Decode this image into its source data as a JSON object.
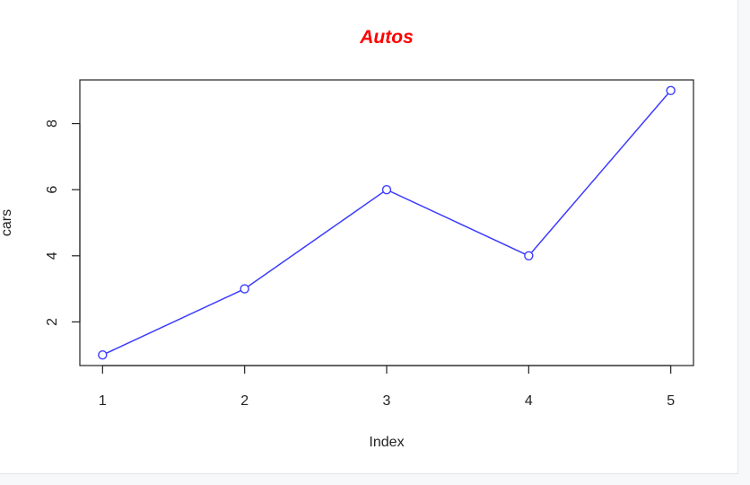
{
  "colors": {
    "title": "#ff0000",
    "series": "#3b3bff",
    "axis": "#222222"
  },
  "chart_data": {
    "type": "line",
    "title": "Autos",
    "xlabel": "Index",
    "ylabel": "cars",
    "x": [
      1,
      2,
      3,
      4,
      5
    ],
    "series": [
      {
        "values": [
          1,
          3,
          6,
          4,
          9
        ],
        "marker": "open-circle"
      }
    ],
    "xticks": [
      "1",
      "2",
      "3",
      "4",
      "5"
    ],
    "yticks": [
      "2",
      "4",
      "6",
      "8"
    ],
    "xlim": [
      0.84,
      5.16
    ],
    "ylim": [
      0.68,
      9.32
    ],
    "grid": false,
    "legend": "none"
  }
}
